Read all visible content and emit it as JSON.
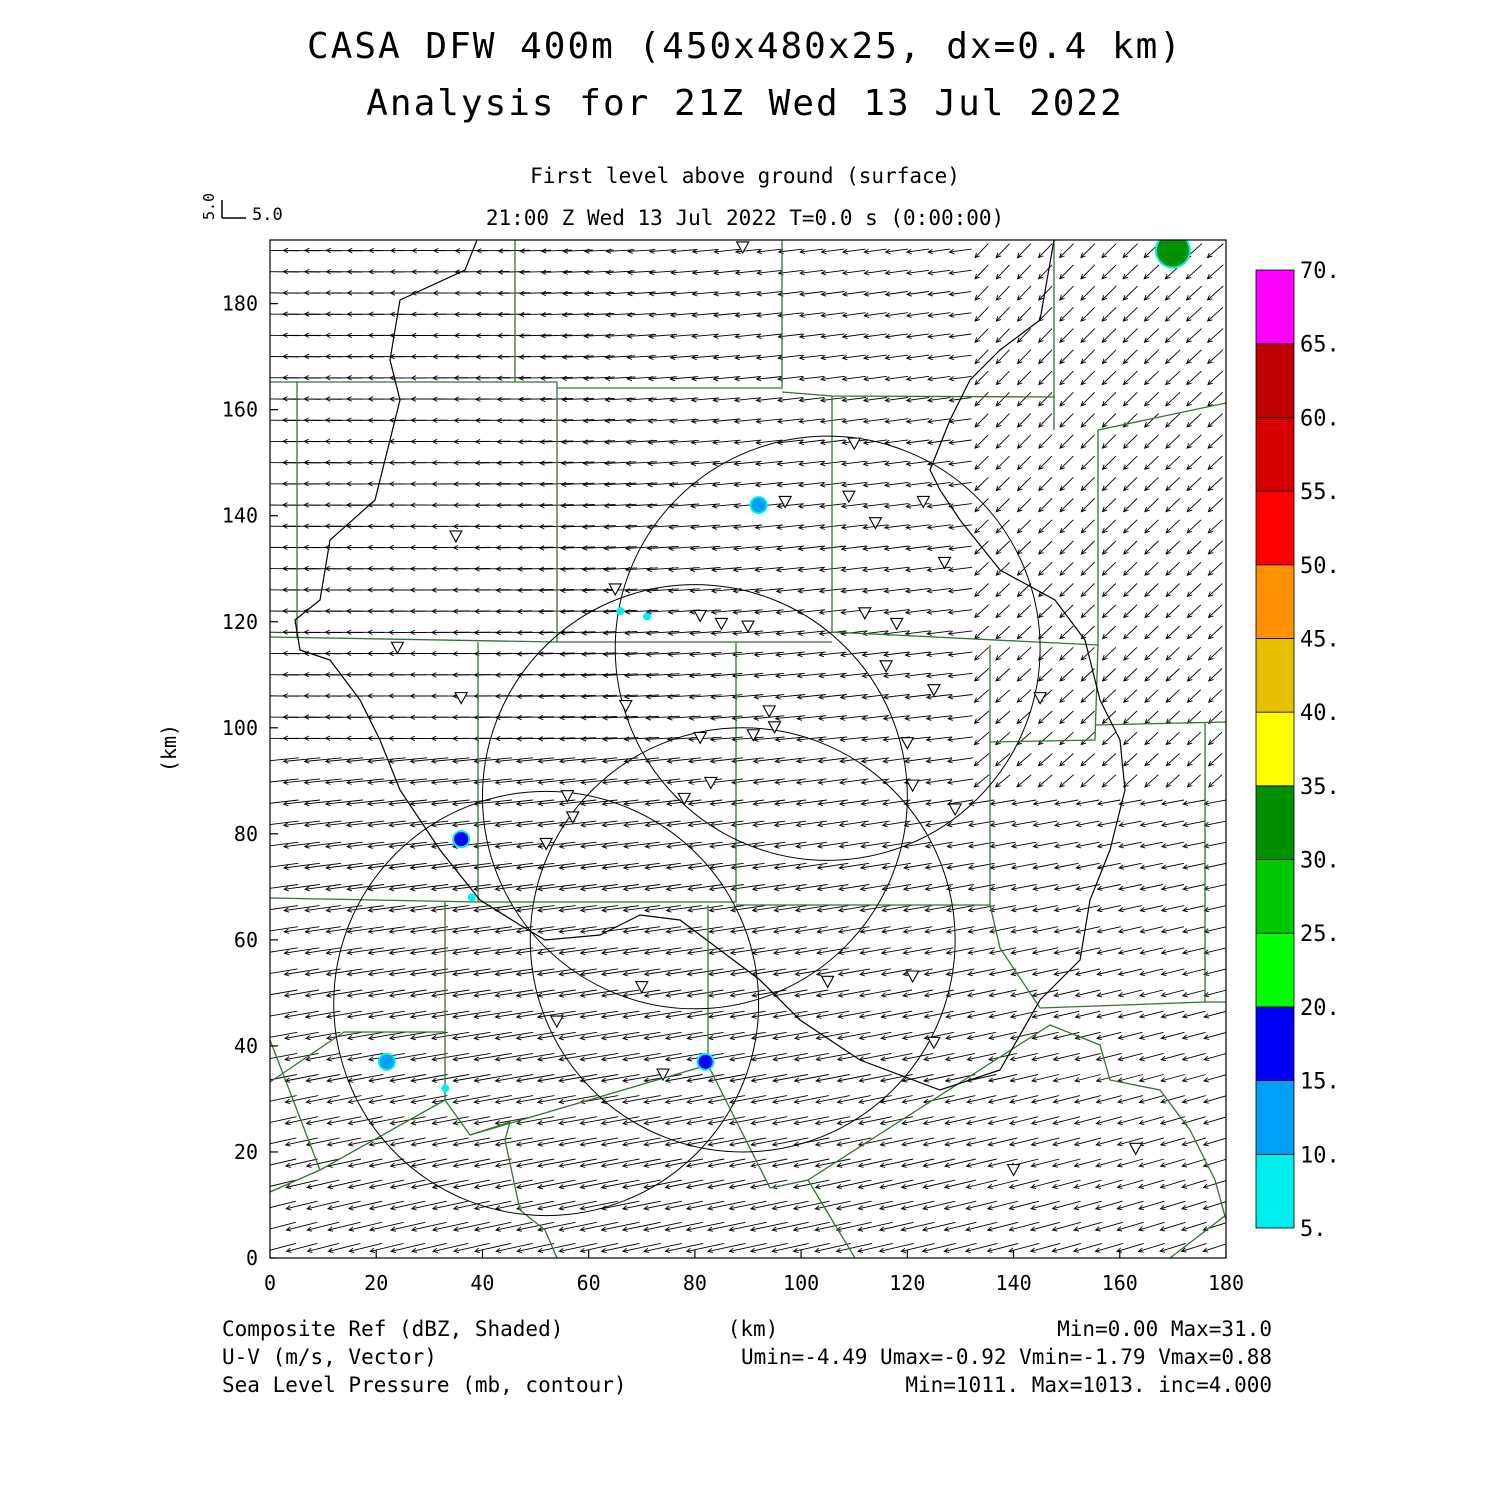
{
  "header": {
    "title_line1": "CASA DFW 400m (450x480x25, dx=0.4 km)",
    "title_line2": "Analysis for 21Z Wed 13 Jul 2022",
    "level_label": "First level above ground (surface)",
    "time_label": "21:00 Z Wed 13 Jul 2022    T=0.0 s (0:00:00)",
    "vector_ref_vertical": "5.0",
    "vector_ref_horizontal": "5.0"
  },
  "axes": {
    "x_ticks": [
      "0",
      "20",
      "40",
      "60",
      "80",
      "100",
      "120",
      "140",
      "160",
      "180"
    ],
    "y_ticks": [
      "0",
      "20",
      "40",
      "60",
      "80",
      "100",
      "120",
      "140",
      "160",
      "180"
    ],
    "y_unit_label": "(km)",
    "x_unit_label": "(km)",
    "x_range": [
      0,
      180
    ],
    "y_range": [
      0,
      192
    ]
  },
  "colorbar": {
    "labels": [
      "5.",
      "10.",
      "15.",
      "20.",
      "25.",
      "30.",
      "35.",
      "40.",
      "45.",
      "50.",
      "55.",
      "60.",
      "65.",
      "70."
    ],
    "colors": [
      "#00eeee",
      "#00a0f6",
      "#0000f6",
      "#00ff00",
      "#00c800",
      "#009000",
      "#ffff00",
      "#e7c000",
      "#ff9000",
      "#ff0000",
      "#d60000",
      "#c00000",
      "#ff00ff"
    ]
  },
  "footer": {
    "field1_label": "Composite Ref (dBZ, Shaded)",
    "field1_stats": "Min=0.00 Max=31.0",
    "field2_label": "U-V (m/s, Vector)",
    "field2_stats": "Umin=-4.49 Umax=-0.92 Vmin=-1.79 Vmax=0.88",
    "field3_label": "Sea Level Pressure (mb, contour)",
    "field3_stats": "Min=1011. Max=1013. inc=4.000"
  },
  "map_data": {
    "radar_rings_km": [
      {
        "center": [
          105,
          115
        ],
        "radius": 40
      },
      {
        "center": [
          80,
          87
        ],
        "radius": 40
      },
      {
        "center": [
          89,
          60
        ],
        "radius": 40
      },
      {
        "center": [
          52,
          48
        ],
        "radius": 40
      }
    ],
    "radar_sites_km": [
      [
        89,
        190.5
      ],
      [
        35,
        136
      ],
      [
        65,
        126
      ],
      [
        24,
        115
      ],
      [
        36,
        105.5
      ],
      [
        67,
        104
      ],
      [
        81,
        121
      ],
      [
        85,
        119.5
      ],
      [
        90,
        119
      ],
      [
        94,
        103
      ],
      [
        91,
        98.5
      ],
      [
        95,
        100
      ],
      [
        81,
        98
      ],
      [
        83,
        89.5
      ],
      [
        78,
        86.5
      ],
      [
        56,
        87
      ],
      [
        57,
        83
      ],
      [
        52,
        78
      ],
      [
        97,
        142.5
      ],
      [
        109,
        143.5
      ],
      [
        114,
        138.5
      ],
      [
        123,
        142.5
      ],
      [
        127,
        131
      ],
      [
        110,
        153.5
      ],
      [
        112,
        121.5
      ],
      [
        118,
        119.5
      ],
      [
        116,
        111.5
      ],
      [
        125,
        107
      ],
      [
        120,
        97
      ],
      [
        121,
        89
      ],
      [
        129,
        84.5
      ],
      [
        145,
        105.5
      ],
      [
        105,
        52
      ],
      [
        121,
        53
      ],
      [
        125,
        40.5
      ],
      [
        70,
        51
      ],
      [
        54,
        44.5
      ],
      [
        74,
        34.5
      ],
      [
        140,
        16.5
      ],
      [
        163,
        20.5
      ]
    ],
    "reflectivity_cells": [
      {
        "x": 92,
        "y": 142,
        "dbz": 12
      },
      {
        "x": 71,
        "y": 121,
        "dbz": 8
      },
      {
        "x": 66,
        "y": 122,
        "dbz": 6
      },
      {
        "x": 36,
        "y": 79,
        "dbz": 16
      },
      {
        "x": 38,
        "y": 68,
        "dbz": 6
      },
      {
        "x": 22,
        "y": 37,
        "dbz": 13
      },
      {
        "x": 33,
        "y": 32,
        "dbz": 7
      },
      {
        "x": 82,
        "y": 37,
        "dbz": 17
      },
      {
        "x": 170,
        "y": 190,
        "dbz": 31
      }
    ]
  }
}
